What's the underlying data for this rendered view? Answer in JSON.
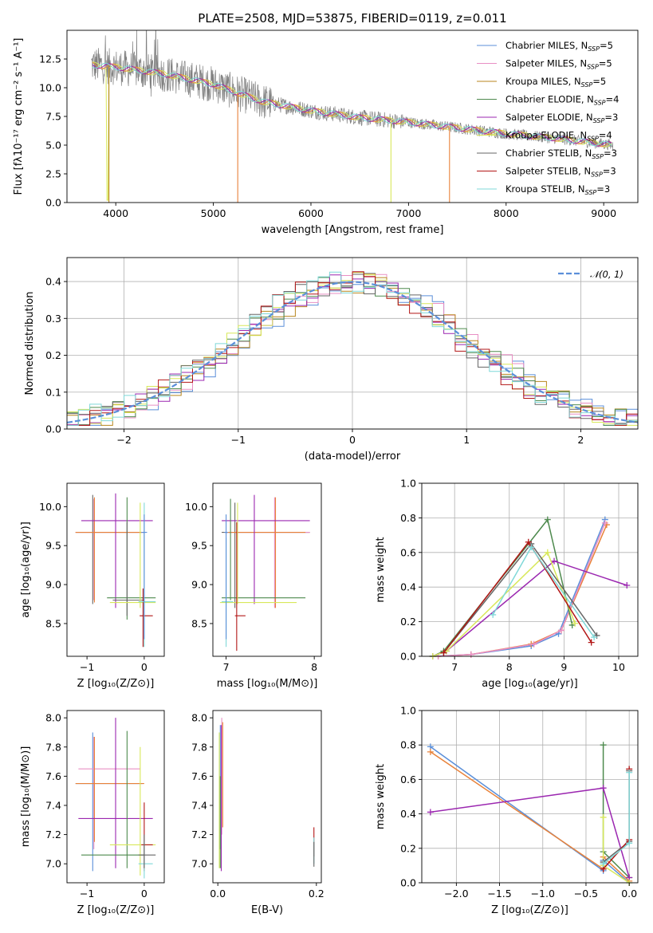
{
  "title": "PLATE=2508, MJD=53875, FIBERID=0119, z=0.011",
  "colors": {
    "Chabrier MILES": "#5b8fd9",
    "Salpeter MILES": "#e88fc4",
    "Kroupa MILES": "#b8861e",
    "Chabrier ELODIE": "#4e8a4e",
    "Salpeter ELODIE": "#9b27b0",
    "Kroupa ELODIE": "#d8e85a",
    "Chabrier STELIB": "#666666",
    "Salpeter STELIB": "#b21515",
    "Kroupa STELIB": "#7fd8d8",
    "orange": "#e8823a",
    "data": "#808080",
    "normal": "#5b8fd9"
  },
  "chart_data": [
    {
      "panel": "spectrum",
      "type": "line",
      "xlabel": "wavelength [Angstrom, rest frame]",
      "ylabel": "Flux [fλ10⁻¹⁷ erg cm⁻² s⁻¹ A⁻¹]",
      "xlim": [
        3500,
        9350
      ],
      "ylim": [
        0,
        15
      ],
      "xticks": [
        "4000",
        "5000",
        "6000",
        "7000",
        "8000",
        "9000"
      ],
      "yticks": [
        "0.0",
        "2.5",
        "5.0",
        "7.5",
        "10.0",
        "12.5"
      ],
      "legend": {
        "position": "top-right",
        "entries": [
          {
            "name": "Chabrier MILES",
            "nssp": "5"
          },
          {
            "name": "Salpeter MILES",
            "nssp": "5"
          },
          {
            "name": "Kroupa MILES",
            "nssp": "5"
          },
          {
            "name": "Chabrier ELODIE",
            "nssp": "4"
          },
          {
            "name": "Salpeter ELODIE",
            "nssp": "3"
          },
          {
            "name": "Kroupa ELODIE",
            "nssp": "4"
          },
          {
            "name": "Chabrier STELIB",
            "nssp": "3"
          },
          {
            "name": "Salpeter STELIB",
            "nssp": "3"
          },
          {
            "name": "Kroupa STELIB",
            "nssp": "3"
          }
        ]
      },
      "continuum": {
        "x": [
          3750,
          4000,
          4500,
          5000,
          5500,
          6000,
          6500,
          7000,
          7500,
          8000,
          8500,
          9000,
          9100
        ],
        "y": [
          12.0,
          11.8,
          11.2,
          10.3,
          8.8,
          8.0,
          7.4,
          7.0,
          6.5,
          6.0,
          5.6,
          5.1,
          5.0
        ]
      }
    },
    {
      "panel": "residuals",
      "type": "line",
      "xlabel": "(data-model)/error",
      "ylabel": "Normed distribution",
      "xlim": [
        -2.5,
        2.5
      ],
      "ylim": [
        0,
        0.465
      ],
      "xticks": [
        "−2",
        "−1",
        "0",
        "1",
        "2"
      ],
      "yticks": [
        "0.0",
        "0.1",
        "0.2",
        "0.3",
        "0.4"
      ],
      "grid": true,
      "legend": {
        "position": "top-right",
        "entries": [
          "𝒩(0, 1)"
        ]
      },
      "bin_width": 0.1
    },
    {
      "panel": "age_vs_Z",
      "type": "scatter",
      "xlabel": "Z [log₁₀(Z/Z⊙)]",
      "ylabel": "age  [log₁₀(age/yr)]",
      "xlim": [
        -1.35,
        0.35
      ],
      "ylim": [
        8.08,
        10.3
      ],
      "xticks": [
        "−1",
        "0"
      ],
      "yticks": [
        "8.5",
        "9.0",
        "9.5",
        "10.0"
      ],
      "errorbars": [
        {
          "x": -0.9,
          "y": 9.67,
          "xl": -1.2,
          "xh": 0.0,
          "yl": 8.75,
          "yh": 10.15,
          "c": "Chabrier STELIB"
        },
        {
          "x": -0.88,
          "y": 9.67,
          "xl": -1.2,
          "xh": 0.0,
          "yl": 8.8,
          "yh": 10.1,
          "c": "Salpeter MILES"
        },
        {
          "x": -0.87,
          "y": 9.67,
          "xl": -1.2,
          "xh": -0.05,
          "yl": 8.77,
          "yh": 10.12,
          "c": "orange"
        },
        {
          "x": -0.5,
          "y": 9.82,
          "xl": -1.1,
          "xh": 0.15,
          "yl": 8.7,
          "yh": 10.17,
          "c": "Salpeter ELODIE"
        },
        {
          "x": -0.3,
          "y": 8.83,
          "xl": -0.65,
          "xh": 0.2,
          "yl": 8.55,
          "yh": 10.12,
          "c": "Chabrier ELODIE"
        },
        {
          "x": -0.3,
          "y": 8.8,
          "xl": -0.55,
          "xh": 0.0,
          "yl": 8.6,
          "yh": 9.8,
          "c": "Chabrier STELIB"
        },
        {
          "x": -0.07,
          "y": 8.77,
          "xl": -0.6,
          "xh": 0.2,
          "yl": 8.7,
          "yh": 10.05,
          "c": "Kroupa ELODIE"
        },
        {
          "x": -0.02,
          "y": 8.6,
          "xl": -0.08,
          "xh": 0.15,
          "yl": 8.2,
          "yh": 8.95,
          "c": "Salpeter STELIB"
        },
        {
          "x": 0.0,
          "y": 8.78,
          "xl": -0.1,
          "xh": 0.2,
          "yl": 8.2,
          "yh": 10.05,
          "c": "Kroupa STELIB"
        },
        {
          "x": 0.0,
          "y": 9.67,
          "xl": -0.05,
          "xh": 0.05,
          "yl": 8.3,
          "yh": 9.9,
          "c": "Chabrier MILES"
        }
      ]
    },
    {
      "panel": "age_vs_mass",
      "type": "scatter",
      "xlabel": "mass [log₁₀(M/M⊙)]",
      "xlim": [
        6.85,
        8.08
      ],
      "ylim": [
        8.08,
        10.3
      ],
      "xticks": [
        "7",
        "8"
      ],
      "yticks": [
        "8.5",
        "9.0",
        "9.5",
        "10.0"
      ],
      "errorbars": [
        {
          "x": 7.1,
          "y": 9.67,
          "xl": 6.95,
          "xh": 7.95,
          "yl": 8.7,
          "yh": 10.05,
          "c": "Chabrier STELIB"
        },
        {
          "x": 7.55,
          "y": 9.67,
          "xl": 7.0,
          "xh": 7.95,
          "yl": 8.7,
          "yh": 10.12,
          "c": "Salpeter MILES"
        },
        {
          "x": 7.56,
          "y": 9.67,
          "xl": 7.0,
          "xh": 7.9,
          "yl": 8.7,
          "yh": 10.12,
          "c": "orange"
        },
        {
          "x": 7.32,
          "y": 9.82,
          "xl": 6.95,
          "xh": 7.95,
          "yl": 8.75,
          "yh": 10.15,
          "c": "Salpeter ELODIE"
        },
        {
          "x": 7.05,
          "y": 8.83,
          "xl": 6.95,
          "xh": 7.9,
          "yl": 8.8,
          "yh": 10.1,
          "c": "Chabrier ELODIE"
        },
        {
          "x": 7.13,
          "y": 8.77,
          "xl": 6.93,
          "xh": 7.8,
          "yl": 8.75,
          "yh": 10.05,
          "c": "Kroupa ELODIE"
        },
        {
          "x": 7.12,
          "y": 8.6,
          "xl": 7.1,
          "xh": 7.22,
          "yl": 8.15,
          "yh": 9.8,
          "c": "Salpeter STELIB"
        },
        {
          "x": 7.0,
          "y": 8.78,
          "xl": 6.95,
          "xh": 7.08,
          "yl": 8.2,
          "yh": 9.6,
          "c": "Kroupa STELIB"
        },
        {
          "x": 7.0,
          "y": 9.67,
          "xl": 6.98,
          "xh": 7.02,
          "yl": 8.3,
          "yh": 9.9,
          "c": "Chabrier MILES"
        }
      ]
    },
    {
      "panel": "mass_weight_vs_age",
      "type": "line",
      "xlabel": "age  [log₁₀(age/yr)]",
      "ylabel": "mass weight",
      "xlim": [
        6.4,
        10.35
      ],
      "ylim": [
        0,
        1
      ],
      "xticks": [
        "7",
        "8",
        "9",
        "10"
      ],
      "yticks": [
        "0.0",
        "0.2",
        "0.4",
        "0.6",
        "0.8",
        "1.0"
      ],
      "grid": true,
      "series": [
        {
          "c": "Chabrier MILES",
          "x": [
            6.6,
            7.3,
            8.4,
            8.9,
            9.75
          ],
          "y": [
            0.0,
            0.01,
            0.06,
            0.13,
            0.79
          ]
        },
        {
          "c": "orange",
          "x": [
            6.7,
            7.3,
            8.4,
            8.95,
            9.78
          ],
          "y": [
            0.0,
            0.01,
            0.07,
            0.15,
            0.76
          ]
        },
        {
          "c": "Salpeter MILES",
          "x": [
            6.7,
            7.3,
            8.45,
            8.95,
            9.75
          ],
          "y": [
            0.0,
            0.01,
            0.07,
            0.15,
            0.77
          ]
        },
        {
          "c": "Chabrier ELODIE",
          "x": [
            6.6,
            6.8,
            8.7,
            9.15
          ],
          "y": [
            0.0,
            0.03,
            0.79,
            0.18
          ]
        },
        {
          "c": "Salpeter ELODIE",
          "x": [
            6.6,
            6.85,
            8.82,
            10.15
          ],
          "y": [
            0.0,
            0.03,
            0.55,
            0.41
          ]
        },
        {
          "c": "Kroupa ELODIE",
          "x": [
            6.6,
            6.85,
            8.7,
            9.2
          ],
          "y": [
            0.0,
            0.03,
            0.6,
            0.19
          ]
        },
        {
          "c": "Chabrier STELIB",
          "x": [
            6.8,
            8.4,
            9.6
          ],
          "y": [
            0.02,
            0.65,
            0.12
          ]
        },
        {
          "c": "Salpeter STELIB",
          "x": [
            6.8,
            8.35,
            9.5
          ],
          "y": [
            0.02,
            0.66,
            0.08
          ]
        },
        {
          "c": "Kroupa STELIB",
          "x": [
            7.7,
            8.4,
            9.55
          ],
          "y": [
            0.24,
            0.63,
            0.11
          ]
        }
      ]
    },
    {
      "panel": "mass_vs_Z",
      "type": "scatter",
      "xlabel": "Z [log₁₀(Z/Z⊙)]",
      "ylabel": "mass [log₁₀(M/M⊙)]",
      "xlim": [
        -1.35,
        0.35
      ],
      "ylim": [
        6.87,
        8.05
      ],
      "xticks": [
        "−1",
        "0"
      ],
      "yticks": [
        "7.0",
        "7.2",
        "7.4",
        "7.6",
        "7.8",
        "8.0"
      ],
      "errorbars": [
        {
          "x": -0.9,
          "y": 7.55,
          "xl": -1.2,
          "xh": -0.03,
          "yl": 6.95,
          "yh": 7.9,
          "c": "Chabrier MILES"
        },
        {
          "x": -0.88,
          "y": 7.65,
          "xl": -1.15,
          "xh": -0.07,
          "yl": 7.1,
          "yh": 7.87,
          "c": "Salpeter MILES"
        },
        {
          "x": -0.87,
          "y": 7.55,
          "xl": -1.2,
          "xh": 0.0,
          "yl": 7.15,
          "yh": 7.87,
          "c": "orange"
        },
        {
          "x": -0.5,
          "y": 7.31,
          "xl": -1.15,
          "xh": 0.15,
          "yl": 6.97,
          "yh": 8.0,
          "c": "Salpeter ELODIE"
        },
        {
          "x": -0.3,
          "y": 7.06,
          "xl": -1.1,
          "xh": 0.0,
          "yl": 6.97,
          "yh": 7.91,
          "c": "Chabrier ELODIE"
        },
        {
          "x": -0.07,
          "y": 7.13,
          "xl": -0.6,
          "xh": 0.2,
          "yl": 6.92,
          "yh": 7.8,
          "c": "Kroupa ELODIE"
        },
        {
          "x": 0.0,
          "y": 7.13,
          "xl": -0.05,
          "xh": 0.15,
          "yl": 6.95,
          "yh": 7.42,
          "c": "Salpeter STELIB"
        },
        {
          "x": 0.0,
          "y": 7.0,
          "xl": -0.1,
          "xh": 0.15,
          "yl": 6.9,
          "yh": 7.15,
          "c": "Kroupa STELIB"
        },
        {
          "x": 0.0,
          "y": 7.06,
          "xl": -0.1,
          "xh": 0.2,
          "yl": 6.97,
          "yh": 7.2,
          "c": "Chabrier STELIB"
        }
      ]
    },
    {
      "panel": "mass_vs_ebv",
      "type": "scatter",
      "xlabel": "E(B-V)",
      "xlim": [
        -0.01,
        0.21
      ],
      "ylim": [
        6.87,
        8.05
      ],
      "xticks": [
        "0.0",
        "0.2"
      ],
      "yticks": [
        "7.0",
        "7.2",
        "7.4",
        "7.6",
        "7.8",
        "8.0"
      ],
      "errorbars": [
        {
          "x": 0.005,
          "y": 7.5,
          "yl": 7.1,
          "yh": 7.95,
          "c": "Chabrier MILES"
        },
        {
          "x": 0.008,
          "y": 7.6,
          "yl": 7.2,
          "yh": 8.0,
          "c": "Salpeter MILES"
        },
        {
          "x": 0.01,
          "y": 7.6,
          "yl": 7.25,
          "yh": 7.97,
          "c": "orange"
        },
        {
          "x": 0.007,
          "y": 7.5,
          "yl": 6.95,
          "yh": 7.95,
          "c": "Salpeter ELODIE"
        },
        {
          "x": 0.003,
          "y": 7.4,
          "yl": 6.97,
          "yh": 7.9,
          "c": "Kroupa ELODIE"
        },
        {
          "x": 0.005,
          "y": 7.1,
          "yl": 6.97,
          "yh": 7.6,
          "c": "Chabrier ELODIE"
        },
        {
          "x": 0.195,
          "y": 7.13,
          "yl": 7.05,
          "yh": 7.25,
          "c": "Salpeter STELIB"
        },
        {
          "x": 0.195,
          "y": 7.1,
          "yl": 7.0,
          "yh": 7.18,
          "c": "Kroupa STELIB"
        },
        {
          "x": 0.195,
          "y": 7.05,
          "yl": 6.98,
          "yh": 7.15,
          "c": "Chabrier STELIB"
        }
      ]
    },
    {
      "panel": "mass_weight_vs_Z",
      "type": "line",
      "xlabel": "Z [log₁₀(Z/Z⊙)]",
      "ylabel": "mass weight",
      "xlim": [
        -2.4,
        0.1
      ],
      "ylim": [
        0,
        1
      ],
      "xticks": [
        "−2.0",
        "−1.5",
        "−1.0",
        "−0.5",
        "0.0"
      ],
      "yticks": [
        "0.0",
        "0.2",
        "0.4",
        "0.6",
        "0.8",
        "1.0"
      ],
      "grid": true,
      "series": [
        {
          "c": "Chabrier MILES",
          "x": [
            -2.3,
            -0.3,
            -0.3,
            0.0
          ],
          "y": [
            0.79,
            0.07,
            0.13,
            0.0
          ]
        },
        {
          "c": "orange",
          "x": [
            -2.3,
            -0.3,
            -0.3,
            0.0
          ],
          "y": [
            0.76,
            0.08,
            0.15,
            0.01
          ]
        },
        {
          "c": "Chabrier ELODIE",
          "x": [
            -0.3,
            -0.3,
            0.0
          ],
          "y": [
            0.8,
            0.18,
            0.03
          ]
        },
        {
          "c": "Salpeter ELODIE",
          "x": [
            -2.3,
            -0.3,
            0.0
          ],
          "y": [
            0.41,
            0.55,
            0.03
          ]
        },
        {
          "c": "Kroupa ELODIE",
          "x": [
            -0.3,
            -0.3,
            0.0
          ],
          "y": [
            0.38,
            0.1,
            0.0
          ]
        },
        {
          "c": "Chabrier STELIB",
          "x": [
            -0.3,
            0.0,
            0.0
          ],
          "y": [
            0.12,
            0.24,
            0.65
          ]
        },
        {
          "c": "Salpeter STELIB",
          "x": [
            -0.3,
            0.0,
            0.0
          ],
          "y": [
            0.08,
            0.25,
            0.66
          ]
        },
        {
          "c": "Kroupa STELIB",
          "x": [
            -0.3,
            0.0,
            0.0
          ],
          "y": [
            0.11,
            0.23,
            0.64
          ]
        }
      ]
    }
  ]
}
